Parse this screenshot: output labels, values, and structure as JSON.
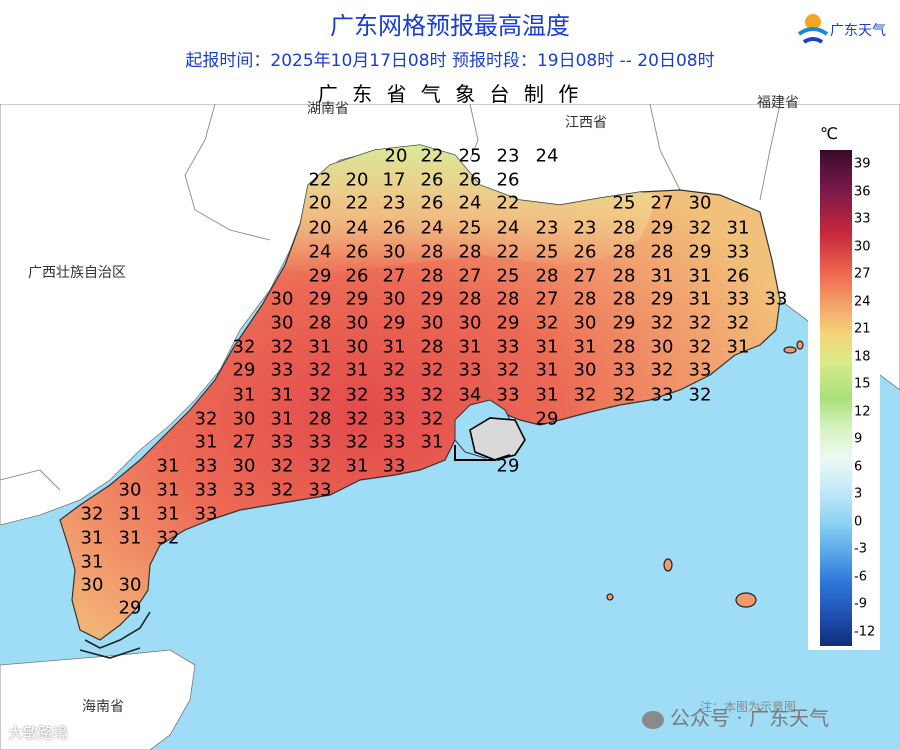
{
  "header": {
    "title": "广东网格预报最高温度",
    "subtitle": "起报时间：2025年10月17日08时   预报时段：19日08时 -- 20日08时",
    "maker": "广 东 省 气 象 台 制 作",
    "logo_text": "广东天气"
  },
  "regions": {
    "hunan": "湖南省",
    "jiangxi": "江西省",
    "fujian": "福建省",
    "guangxi": "广西壮族自治区",
    "hainan": "海南省"
  },
  "legend": {
    "unit": "℃",
    "ticks": [
      "39",
      "36",
      "33",
      "30",
      "27",
      "24",
      "21",
      "18",
      "15",
      "12",
      "9",
      "6",
      "3",
      "0",
      "-3",
      "-6",
      "-9",
      "-12"
    ]
  },
  "temperatures": [
    [
      "20",
      "22",
      "25",
      "23",
      "24"
    ],
    [
      "22",
      "20",
      "17",
      "26",
      "26",
      "26"
    ],
    [
      "20",
      "22",
      "23",
      "26",
      "24",
      "22"
    ],
    [
      "25",
      "27",
      "30"
    ],
    [
      "20",
      "24",
      "26",
      "24",
      "25",
      "24",
      "23",
      "23",
      "28",
      "29",
      "32",
      "31"
    ],
    [
      "24",
      "26",
      "30",
      "28",
      "28",
      "22",
      "25",
      "26",
      "28",
      "28",
      "29",
      "33"
    ],
    [
      "29",
      "26",
      "27",
      "28",
      "27",
      "25",
      "28",
      "27",
      "28",
      "31",
      "31",
      "26"
    ],
    [
      "30",
      "29",
      "29",
      "30",
      "29",
      "28",
      "28",
      "27",
      "28",
      "28",
      "29",
      "31",
      "33",
      "33"
    ],
    [
      "30",
      "28",
      "30",
      "29",
      "30",
      "30",
      "29",
      "32",
      "30",
      "29",
      "32",
      "32",
      "32"
    ],
    [
      "32",
      "32",
      "31",
      "30",
      "31",
      "28",
      "31",
      "33",
      "31",
      "31",
      "28",
      "30",
      "32",
      "31"
    ],
    [
      "29",
      "33",
      "32",
      "31",
      "32",
      "32",
      "33",
      "32",
      "31",
      "30",
      "33",
      "32",
      "33"
    ],
    [
      "31",
      "31",
      "32",
      "32",
      "33",
      "32",
      "34",
      "33",
      "31",
      "32",
      "32",
      "33",
      "32"
    ],
    [
      "32",
      "30",
      "31",
      "28",
      "32",
      "33",
      "32",
      "29"
    ],
    [
      "31",
      "27",
      "33",
      "33",
      "32",
      "33",
      "31"
    ],
    [
      "31",
      "33",
      "30",
      "32",
      "32",
      "31",
      "33",
      "29"
    ],
    [
      "30",
      "31",
      "33",
      "33",
      "32",
      "33"
    ],
    [
      "32",
      "31",
      "31",
      "33"
    ],
    [
      "31",
      "31",
      "32"
    ],
    [
      "31"
    ],
    [
      "30",
      "30"
    ],
    [
      "29"
    ]
  ],
  "footer": {
    "note": "注：本图为示意图",
    "watermark": "公众号 · 广东天气",
    "watermark2": "大敏路境"
  },
  "colors": {
    "sea": "#9fdcf5",
    "land_other": "#ffffff",
    "title": "#1a3fd0"
  }
}
